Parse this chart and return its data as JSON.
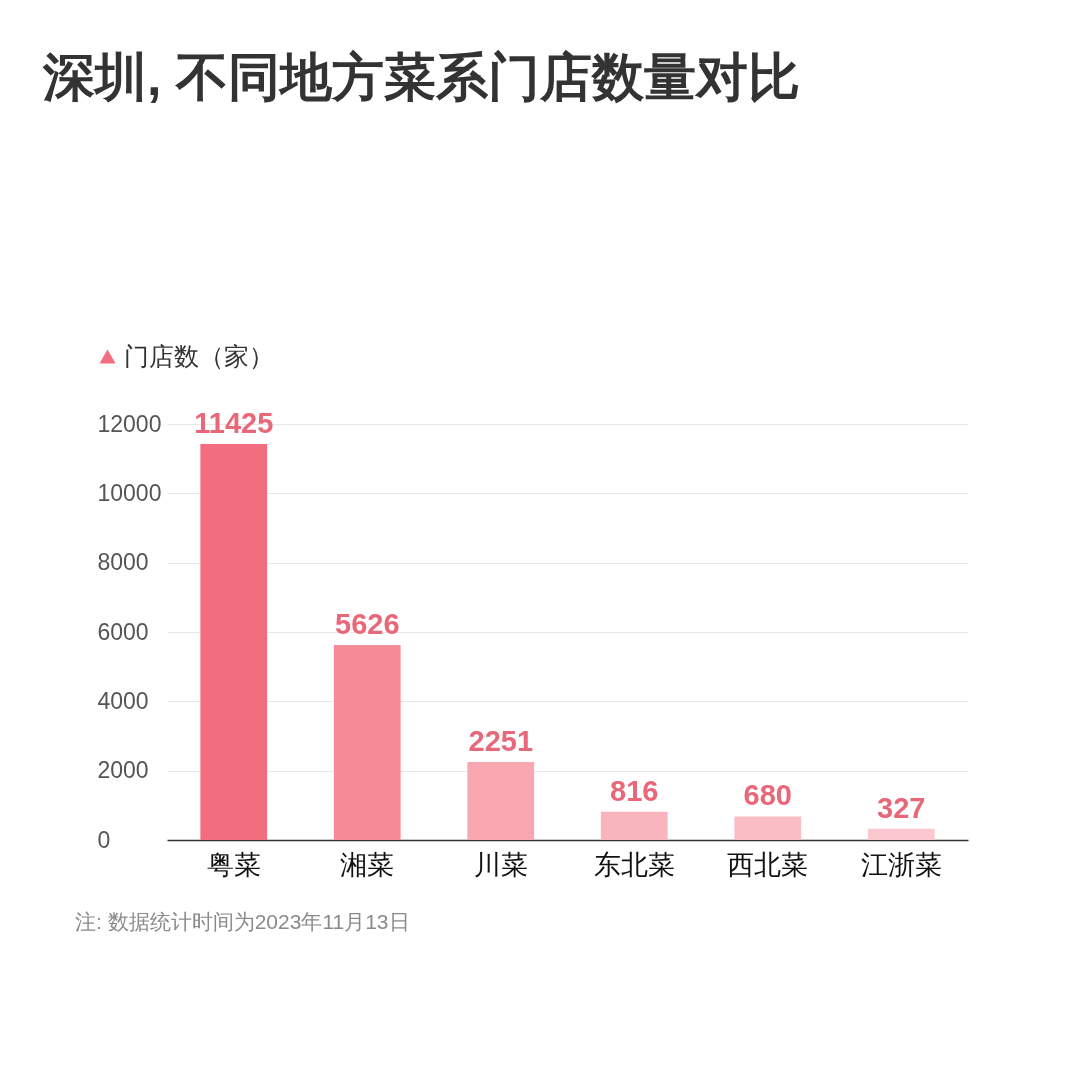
{
  "chart_data": {
    "type": "bar",
    "title": "深圳, 不同地方菜系门店数量对比",
    "categories": [
      "粤菜",
      "湘菜",
      "川菜",
      "东北菜",
      "西北菜",
      "江浙菜"
    ],
    "series": [
      {
        "name": "门店数（家）",
        "color": "#f36d80",
        "colors": [
          "#f36d80",
          "#f68b98",
          "#f8a7b0",
          "#f9b5bd",
          "#fabdc5",
          "#fbc8cf"
        ],
        "values": [
          11425,
          5626,
          2251,
          816,
          680,
          327
        ]
      }
    ],
    "ylim": [
      0,
      12000
    ],
    "yticks": [
      0,
      2000,
      4000,
      6000,
      8000,
      10000,
      12000
    ],
    "grid": "y",
    "legend": "top left",
    "data_labels": true,
    "annotations": [
      "注: 数据统计时间为2023年11月13日"
    ]
  }
}
